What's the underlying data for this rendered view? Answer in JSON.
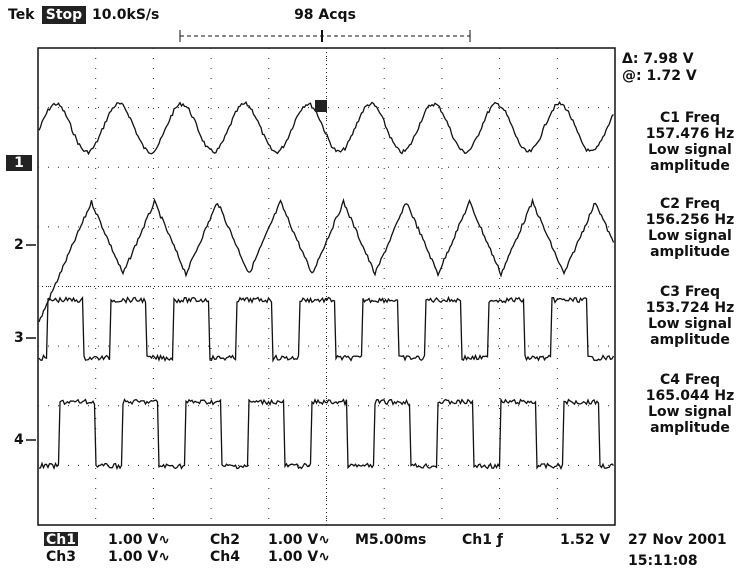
{
  "header": {
    "brand": "Tek",
    "state": "Stop",
    "sample_rate": "10.0kS/s",
    "acquisitions": "98 Acqs"
  },
  "cursor": {
    "delta": "Δ: 7.98 V",
    "at": "@: 1.72 V"
  },
  "measurements": [
    {
      "label": "C1 Freq",
      "value": "157.476 Hz",
      "note": [
        "Low signal",
        "amplitude"
      ]
    },
    {
      "label": "C2 Freq",
      "value": "156.256 Hz",
      "note": [
        "Low signal",
        "amplitude"
      ]
    },
    {
      "label": "C3 Freq",
      "value": "153.724 Hz",
      "note": [
        "Low signal",
        "amplitude"
      ]
    },
    {
      "label": "C4 Freq",
      "value": "165.044 Hz",
      "note": [
        "Low signal",
        "amplitude"
      ]
    }
  ],
  "channel_markers": [
    "1",
    "2",
    "3",
    "4"
  ],
  "footer": {
    "rows": [
      [
        "Ch1",
        "1.00 V∿",
        "Ch2",
        "1.00 V∿",
        "M5.00ms",
        "Ch1 ƒ",
        "1.52 V"
      ],
      [
        "Ch3",
        "1.00 V∿",
        "Ch4",
        "1.00 V∿"
      ]
    ],
    "date": "27 Nov 2001",
    "time": "15:11:08"
  }
}
